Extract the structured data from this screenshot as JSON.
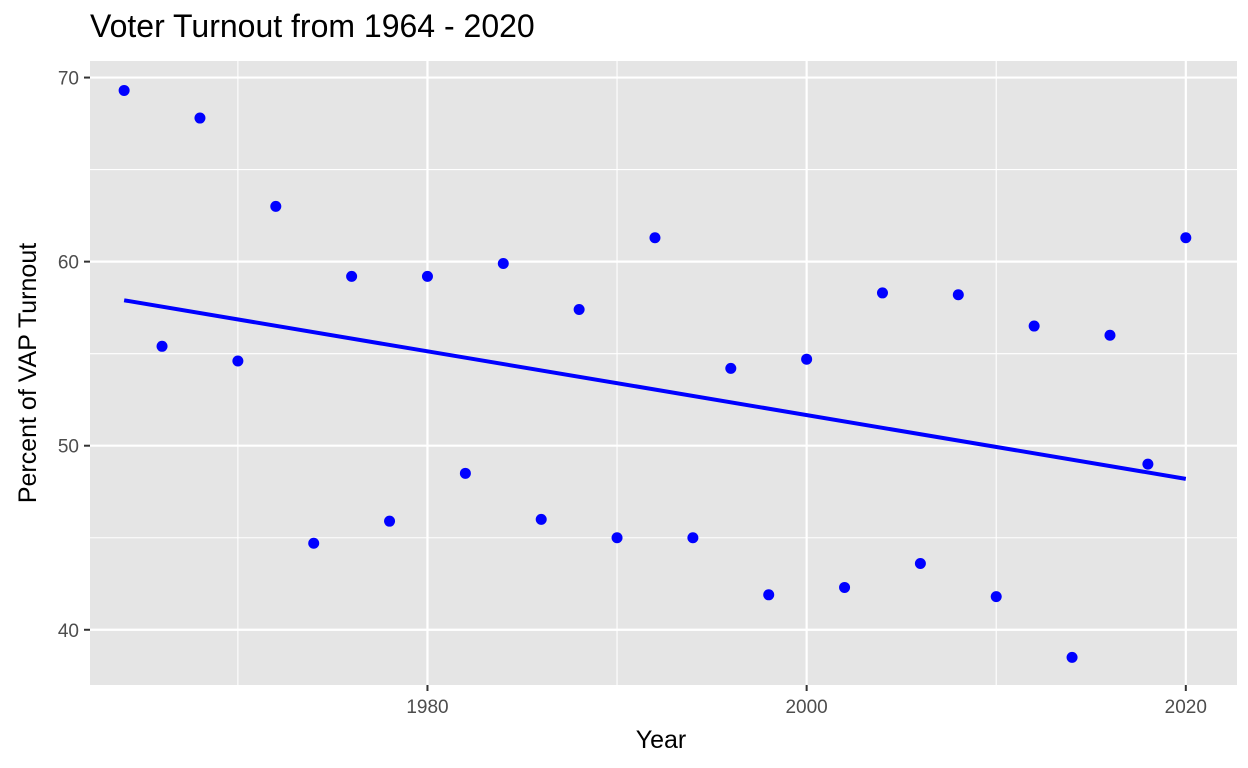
{
  "chart_data": {
    "type": "scatter",
    "title": "Voter Turnout from 1964 - 2020",
    "xlabel": "Year",
    "ylabel": "Percent of VAP Turnout",
    "xlim": [
      1962.2,
      2022.7
    ],
    "ylim": [
      37.0,
      70.9
    ],
    "x_ticks": [
      1980,
      2000,
      2020
    ],
    "y_ticks": [
      40,
      50,
      60,
      70
    ],
    "x_minor": [
      1970,
      1990,
      2010
    ],
    "y_minor": [
      45,
      55,
      65
    ],
    "grid": true,
    "legend": "none",
    "point_color": "#0000ff",
    "line_color": "#0000ff",
    "panel_color": "#e5e5e5",
    "series": [
      {
        "x": [
          1964,
          1966,
          1968,
          1970,
          1972,
          1974,
          1976,
          1978,
          1980,
          1982,
          1984,
          1986,
          1988,
          1990,
          1992,
          1994,
          1996,
          1998,
          2000,
          2002,
          2004,
          2006,
          2008,
          2010,
          2012,
          2014,
          2016,
          2018,
          2020
        ],
        "y": [
          69.3,
          55.4,
          67.8,
          54.6,
          63.0,
          44.7,
          59.2,
          45.9,
          59.2,
          48.5,
          59.9,
          46.0,
          57.4,
          45.0,
          61.3,
          45.0,
          54.2,
          41.9,
          54.7,
          42.3,
          58.3,
          43.6,
          58.2,
          41.8,
          56.5,
          38.5,
          56.0,
          49.0,
          61.3
        ]
      }
    ],
    "trend_line": {
      "x": [
        1964,
        2020
      ],
      "y": [
        57.9,
        48.2
      ]
    }
  }
}
